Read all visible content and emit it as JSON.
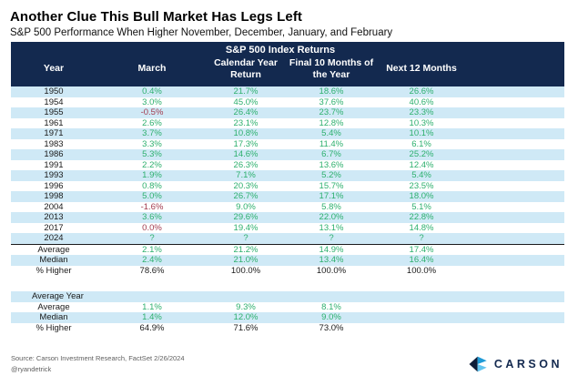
{
  "page": {
    "title": "Another Clue This Bull Market Has Legs Left",
    "subtitle": "S&P 500 Performance When Higher November, December, January, and February"
  },
  "chart_data": {
    "type": "table",
    "title": "Another Clue This Bull Market Has Legs Left",
    "subtitle": "S&P 500 Performance When Higher November, December, January, and February",
    "group_header": "S&P 500 Index Returns",
    "columns": [
      "Year",
      "March",
      "Calendar Year Return",
      "Final 10 Months of the Year",
      "Next 12 Months"
    ],
    "rows": [
      {
        "year": "1950",
        "values": [
          "0.4%",
          "21.7%",
          "18.6%",
          "26.6%"
        ],
        "tones": [
          "pos",
          "pos",
          "pos",
          "pos"
        ]
      },
      {
        "year": "1954",
        "values": [
          "3.0%",
          "45.0%",
          "37.6%",
          "40.6%"
        ],
        "tones": [
          "pos",
          "pos",
          "pos",
          "pos"
        ]
      },
      {
        "year": "1955",
        "values": [
          "-0.5%",
          "26.4%",
          "23.7%",
          "23.3%"
        ],
        "tones": [
          "neg",
          "pos",
          "pos",
          "pos"
        ]
      },
      {
        "year": "1961",
        "values": [
          "2.6%",
          "23.1%",
          "12.8%",
          "10.3%"
        ],
        "tones": [
          "pos",
          "pos",
          "pos",
          "pos"
        ]
      },
      {
        "year": "1971",
        "values": [
          "3.7%",
          "10.8%",
          "5.4%",
          "10.1%"
        ],
        "tones": [
          "pos",
          "pos",
          "pos",
          "pos"
        ]
      },
      {
        "year": "1983",
        "values": [
          "3.3%",
          "17.3%",
          "11.4%",
          "6.1%"
        ],
        "tones": [
          "pos",
          "pos",
          "pos",
          "pos"
        ]
      },
      {
        "year": "1986",
        "values": [
          "5.3%",
          "14.6%",
          "6.7%",
          "25.2%"
        ],
        "tones": [
          "pos",
          "pos",
          "pos",
          "pos"
        ]
      },
      {
        "year": "1991",
        "values": [
          "2.2%",
          "26.3%",
          "13.6%",
          "12.4%"
        ],
        "tones": [
          "pos",
          "pos",
          "pos",
          "pos"
        ]
      },
      {
        "year": "1993",
        "values": [
          "1.9%",
          "7.1%",
          "5.2%",
          "5.4%"
        ],
        "tones": [
          "pos",
          "pos",
          "pos",
          "pos"
        ]
      },
      {
        "year": "1996",
        "values": [
          "0.8%",
          "20.3%",
          "15.7%",
          "23.5%"
        ],
        "tones": [
          "pos",
          "pos",
          "pos",
          "pos"
        ]
      },
      {
        "year": "1998",
        "values": [
          "5.0%",
          "26.7%",
          "17.1%",
          "18.0%"
        ],
        "tones": [
          "pos",
          "pos",
          "pos",
          "pos"
        ]
      },
      {
        "year": "2004",
        "values": [
          "-1.6%",
          "9.0%",
          "5.8%",
          "5.1%"
        ],
        "tones": [
          "neg",
          "pos",
          "pos",
          "pos"
        ]
      },
      {
        "year": "2013",
        "values": [
          "3.6%",
          "29.6%",
          "22.0%",
          "22.8%"
        ],
        "tones": [
          "pos",
          "pos",
          "pos",
          "pos"
        ]
      },
      {
        "year": "2017",
        "values": [
          "0.0%",
          "19.4%",
          "13.1%",
          "14.8%"
        ],
        "tones": [
          "neg",
          "pos",
          "pos",
          "pos"
        ]
      },
      {
        "year": "2024",
        "values": [
          "?",
          "?",
          "?",
          "?"
        ],
        "tones": [
          "pos",
          "pos",
          "pos",
          "pos"
        ]
      }
    ],
    "summary_rows": [
      {
        "label": "Average",
        "values": [
          "2.1%",
          "21.2%",
          "14.9%",
          "17.4%"
        ],
        "tone": "pos"
      },
      {
        "label": "Median",
        "values": [
          "2.4%",
          "21.0%",
          "13.4%",
          "16.4%"
        ],
        "tone": "pos"
      },
      {
        "label": "% Higher",
        "values": [
          "78.6%",
          "100.0%",
          "100.0%",
          "100.0%"
        ],
        "tone": "plain"
      }
    ],
    "average_year_section": {
      "label": "Average Year",
      "rows": [
        {
          "label": "Average",
          "values": [
            "1.1%",
            "9.3%",
            "8.1%",
            ""
          ],
          "tone": "pos"
        },
        {
          "label": "Median",
          "values": [
            "1.4%",
            "12.0%",
            "9.0%",
            ""
          ],
          "tone": "pos"
        },
        {
          "label": "% Higher",
          "values": [
            "64.9%",
            "71.6%",
            "73.0%",
            ""
          ],
          "tone": "plain"
        }
      ]
    }
  },
  "footer": {
    "source": "Source: Carson Investment Research, FactSet 2/26/2024",
    "handle": "@ryandetrick",
    "logo_text": "CARSON"
  },
  "colors": {
    "header_navy": "#13294f",
    "row_highlight_blue": "#cfe9f6",
    "positive_green": "#2eb06e",
    "negative_red": "#a23b4e",
    "logo_navy_dark": "#0d1c38",
    "logo_blue": "#1f9ad6",
    "logo_blue_light": "#62c4ef"
  }
}
